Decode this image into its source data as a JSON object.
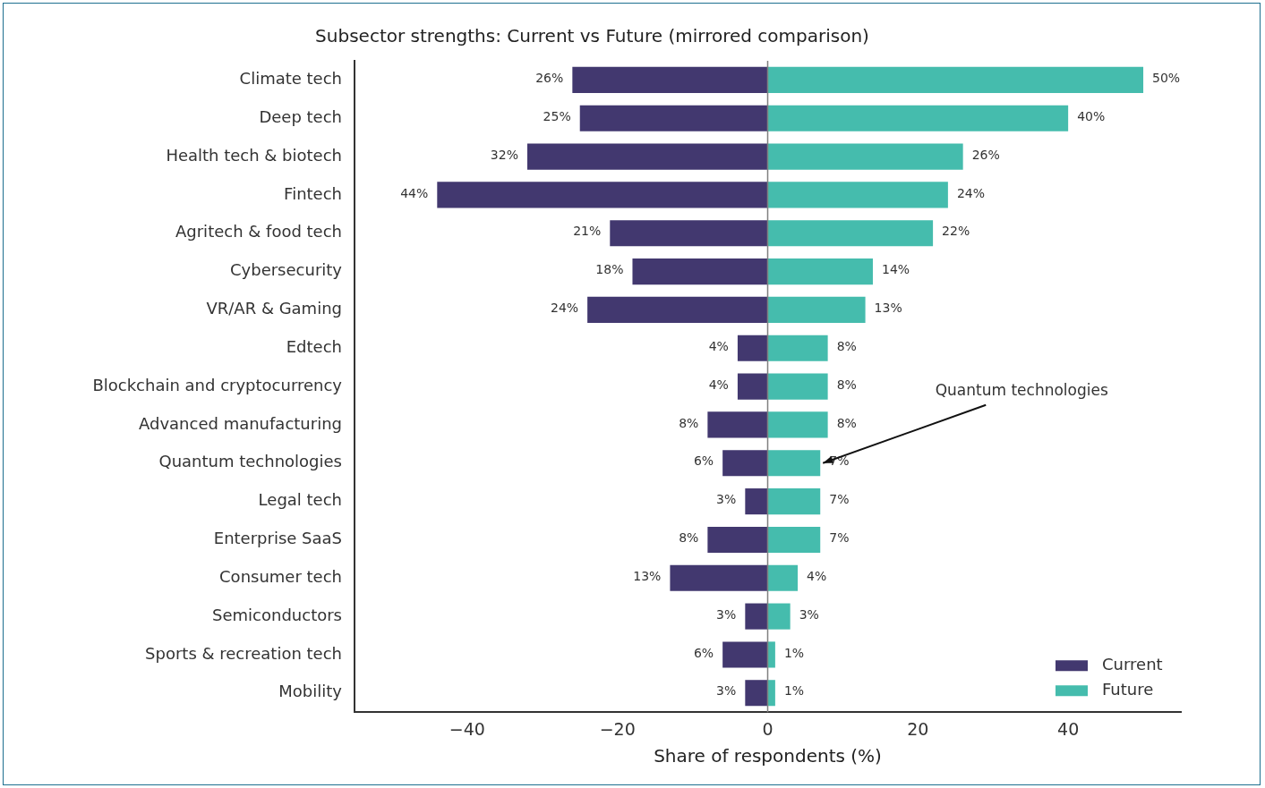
{
  "chart_data": {
    "type": "bar",
    "orientation": "horizontal",
    "title": "Subsector strengths: Current vs Future (mirrored comparison)",
    "xlabel": "Share of respondents (%)",
    "categories": [
      "Climate tech",
      "Deep tech",
      "Health tech & biotech",
      "Fintech",
      "Agritech & food tech",
      "Cybersecurity",
      "VR/AR & Gaming",
      "Edtech",
      "Blockchain and cryptocurrency",
      "Advanced manufacturing",
      "Quantum technologies",
      "Legal tech",
      "Enterprise SaaS",
      "Consumer tech",
      "Semiconductors",
      "Sports & recreation tech",
      "Mobility"
    ],
    "series": [
      {
        "name": "Current",
        "color": "#42386f",
        "values": [
          26,
          25,
          32,
          44,
          21,
          18,
          24,
          4,
          4,
          8,
          6,
          3,
          8,
          13,
          3,
          6,
          3
        ],
        "base": [
          -26,
          -25,
          -32,
          -44,
          -21,
          -18,
          -24,
          -4,
          -4,
          -8,
          -6,
          -3,
          -8,
          -13,
          -3,
          -6,
          -3
        ],
        "value_labels": [
          "26%",
          "25%",
          "32%",
          "44%",
          "21%",
          "18%",
          "24%",
          "4%",
          "4%",
          "8%",
          "6%",
          "3%",
          "8%",
          "13%",
          "3%",
          "6%",
          "3%"
        ]
      },
      {
        "name": "Future",
        "color": "#45bcad",
        "values": [
          50,
          40,
          26,
          24,
          22,
          14,
          13,
          8,
          8,
          8,
          7,
          7,
          7,
          4,
          3,
          1,
          1
        ],
        "value_labels": [
          "50%",
          "40%",
          "26%",
          "24%",
          "22%",
          "14%",
          "13%",
          "8%",
          "8%",
          "8%",
          "7%",
          "7%",
          "7%",
          "4%",
          "3%",
          "1%",
          "1%"
        ]
      }
    ],
    "xlim": [
      -55,
      55
    ],
    "xticks": [
      {
        "value": -40,
        "label": "−40"
      },
      {
        "value": -20,
        "label": "−20"
      },
      0,
      20,
      40
    ],
    "ref_lines": [
      {
        "axis": "x",
        "value": 0,
        "color": "#808080"
      }
    ],
    "annotations": [
      {
        "text": "Quantum technologies",
        "x": 7,
        "y": "Quantum technologies"
      }
    ],
    "grid": false,
    "legend": "bottom right"
  }
}
